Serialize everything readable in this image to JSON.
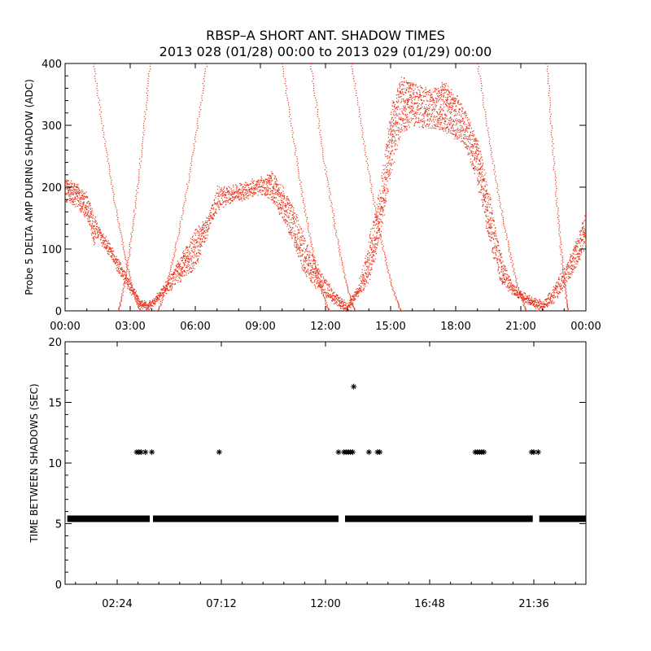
{
  "title_line1": "RBSP–A SHORT ANT. SHADOW TIMES",
  "title_line2": "2013 028 (01/28) 00:00 to 2013 029 (01/29) 00:00",
  "chart_data": [
    {
      "type": "scatter",
      "name": "top-panel",
      "ylabel": "Probe 5 DELTA AMP DURING SHADOW (ADC)",
      "xlabel": "",
      "xlim": [
        0,
        24
      ],
      "ylim": [
        0,
        400
      ],
      "x_tick_labels": [
        "00:00",
        "03:00",
        "06:00",
        "09:00",
        "12:00",
        "15:00",
        "18:00",
        "21:00",
        "00:00"
      ],
      "x_tick_values": [
        0,
        3,
        6,
        9,
        12,
        15,
        18,
        21,
        24
      ],
      "y_tick_labels": [
        "0",
        "100",
        "200",
        "300",
        "400"
      ],
      "y_tick_values": [
        0,
        100,
        200,
        300,
        400
      ],
      "marker_color": "#e8341c",
      "series": [
        {
          "name": "shadow-amp-lower",
          "x": [
            0,
            0.5,
            1.0,
            1.3,
            1.5,
            2.0,
            2.5,
            3.0,
            3.3,
            3.6,
            3.75,
            4.0,
            4.5,
            5.0,
            5.5,
            6.0,
            6.5,
            7.0,
            7.5,
            8.0,
            8.5,
            9.0,
            9.5,
            10.0,
            10.5,
            11.0,
            11.5,
            12.0,
            12.5,
            12.8,
            13.0,
            13.2,
            13.5,
            14.0,
            14.5,
            15.0,
            15.5,
            16.0,
            16.5,
            17.0,
            17.5,
            18.0,
            18.5,
            19.0,
            19.5,
            20.0,
            20.5,
            21.0,
            21.5,
            21.8,
            22.0,
            22.5,
            23.0,
            23.5,
            24.0
          ],
          "y": [
            180,
            170,
            150,
            110,
            120,
            90,
            60,
            30,
            15,
            5,
            2,
            10,
            25,
            40,
            55,
            70,
            120,
            165,
            175,
            180,
            185,
            190,
            180,
            150,
            110,
            60,
            40,
            25,
            10,
            3,
            2,
            10,
            25,
            50,
            120,
            220,
            290,
            300,
            300,
            295,
            290,
            280,
            260,
            200,
            120,
            50,
            30,
            20,
            10,
            3,
            2,
            15,
            40,
            70,
            110
          ]
        },
        {
          "name": "shadow-amp-upper",
          "x": [
            0,
            0.5,
            1.0,
            1.5,
            2.0,
            2.5,
            3.0,
            3.5,
            4.0,
            4.5,
            5.0,
            5.5,
            6.0,
            6.5,
            7.0,
            7.5,
            8.0,
            8.5,
            9.0,
            9.5,
            10.0,
            10.5,
            11.0,
            11.5,
            12.0,
            12.5,
            13.0,
            13.5,
            14.0,
            14.5,
            15.0,
            15.5,
            16.0,
            16.5,
            17.0,
            17.5,
            18.0,
            18.5,
            19.0,
            19.5,
            20.0,
            20.5,
            21.0,
            21.5,
            22.0,
            22.5,
            23.0,
            23.5,
            24.0
          ],
          "y": [
            215,
            205,
            190,
            140,
            110,
            80,
            45,
            15,
            15,
            40,
            70,
            100,
            130,
            150,
            200,
            200,
            205,
            210,
            215,
            225,
            200,
            170,
            120,
            80,
            50,
            25,
            10,
            40,
            120,
            200,
            330,
            380,
            370,
            360,
            360,
            370,
            350,
            320,
            280,
            200,
            100,
            50,
            30,
            20,
            15,
            40,
            70,
            110,
            160
          ]
        }
      ]
    },
    {
      "type": "scatter",
      "name": "bottom-panel",
      "ylabel": "TIME BETWEEN SHADOWS (SEC)",
      "xlabel": "",
      "xlim": [
        0,
        24
      ],
      "ylim": [
        0,
        20
      ],
      "x_tick_labels": [
        "02:24",
        "07:12",
        "12:00",
        "16:48",
        "21:36"
      ],
      "x_tick_values": [
        2.4,
        7.2,
        12.0,
        16.8,
        21.6
      ],
      "y_tick_labels": [
        "0",
        "5",
        "10",
        "15",
        "20"
      ],
      "y_tick_values": [
        0,
        5,
        10,
        15,
        20
      ],
      "marker_color": "#000000",
      "series": [
        {
          "name": "baseline-interval",
          "y_value": 5.4,
          "segments": [
            [
              0.1,
              3.9
            ],
            [
              4.05,
              12.6
            ],
            [
              12.9,
              21.55
            ],
            [
              21.85,
              24.0
            ]
          ]
        },
        {
          "name": "long-interval",
          "x": [
            3.3,
            3.4,
            3.5,
            3.7,
            4.0,
            7.1,
            12.6,
            12.85,
            12.95,
            13.05,
            13.15,
            13.25,
            13.3,
            14.0,
            14.4,
            14.5,
            18.9,
            19.0,
            19.1,
            19.2,
            19.3,
            21.5,
            21.6,
            21.8
          ],
          "y": [
            10.9,
            10.9,
            10.9,
            10.9,
            10.9,
            10.9,
            10.9,
            10.9,
            10.9,
            10.9,
            10.9,
            10.9,
            16.3,
            10.9,
            10.9,
            10.9,
            10.9,
            10.9,
            10.9,
            10.9,
            10.9,
            10.9,
            10.9,
            10.9
          ]
        }
      ]
    }
  ]
}
